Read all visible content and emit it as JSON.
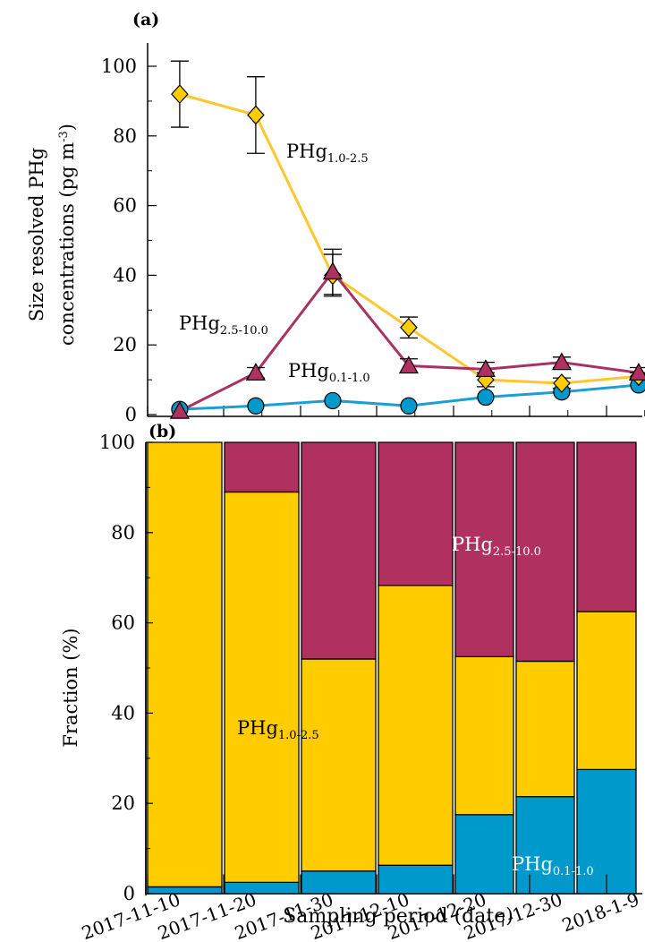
{
  "colors": {
    "PHg_0_1_1_0": "#0099cc",
    "PHg_1_0_2_5": "#ffcc00",
    "PHg_2_5_10_0": "#b03060",
    "line_0_1_1_0": "#1a9fd4",
    "line_1_0_2_5": "#ffc72c",
    "line_2_5_10_0": "#a83262"
  },
  "panel_labels": {
    "a": "(a)",
    "b": "(b)"
  },
  "xlabel": "Sampling period (date)",
  "x_ticks": [
    "2017-11-10",
    "2017-11-20",
    "2017-11-30",
    "2017-12-10",
    "2017-12-20",
    "2017-12-30",
    "2018-1-9"
  ],
  "species": {
    "s1": {
      "main": "PHg",
      "sub": "0.1-1.0"
    },
    "s2": {
      "main": "PHg",
      "sub": "1.0-2.5"
    },
    "s3": {
      "main": "PHg",
      "sub": "2.5-10.0"
    }
  },
  "chart_data": [
    {
      "panel": "a",
      "type": "line",
      "ylabel_line1": "Size resolved PHg",
      "ylabel_line2_main": "concentrations (pg m",
      "ylabel_line2_sup": "-3",
      "ylabel_line2_end": ")",
      "ylim": [
        0,
        100
      ],
      "yticks": [
        0,
        20,
        40,
        60,
        80,
        100
      ],
      "x": [
        "2017-11-15",
        "2017-11-25",
        "2017-12-05",
        "2017-12-15",
        "2017-12-25",
        "2018-01-04",
        "2018-01-14"
      ],
      "series": [
        {
          "key": "s2",
          "name": "PHg1.0-2.5",
          "values": [
            92,
            86,
            40,
            25,
            10,
            9,
            11
          ],
          "err": [
            9.5,
            11,
            6,
            3,
            2,
            1.5,
            1
          ],
          "marker": "diamond"
        },
        {
          "key": "s3",
          "name": "PHg2.5-10.0",
          "values": [
            1,
            12,
            41,
            14,
            13,
            15,
            12
          ],
          "err": [
            0,
            1.5,
            6.5,
            2,
            2,
            1.5,
            1.5
          ],
          "marker": "triangle"
        },
        {
          "key": "s1",
          "name": "PHg0.1-1.0",
          "values": [
            1.5,
            2.5,
            4,
            2.5,
            5,
            6.5,
            8.5
          ],
          "err": [
            0,
            0,
            0,
            0,
            0,
            0,
            0
          ],
          "marker": "circle"
        }
      ]
    },
    {
      "panel": "b",
      "type": "bar",
      "stacked": true,
      "ylabel": "Fraction (%)",
      "ylim": [
        0,
        100
      ],
      "yticks": [
        0,
        20,
        40,
        60,
        80,
        100
      ],
      "categories": [
        "2017-11-10",
        "2017-11-20",
        "2017-11-30",
        "2017-12-10",
        "2017-12-20",
        "2017-12-30",
        "2018-1-9"
      ],
      "series": [
        {
          "key": "s1",
          "name": "PHg0.1-1.0",
          "values": [
            1.5,
            2.5,
            5,
            6.3,
            17.5,
            21.5,
            27.5
          ]
        },
        {
          "key": "s2",
          "name": "PHg1.0-2.5",
          "values": [
            98.5,
            86.5,
            47,
            62,
            35,
            30,
            35
          ]
        },
        {
          "key": "s3",
          "name": "PHg2.5-10.0",
          "values": [
            0,
            11,
            48,
            31.7,
            47.5,
            48.5,
            37.5
          ]
        }
      ]
    }
  ]
}
